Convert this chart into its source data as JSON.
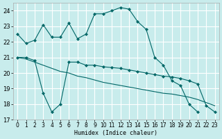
{
  "xlabel": "Humidex (Indice chaleur)",
  "background_color": "#c8ecec",
  "grid_color": "#ffffff",
  "line_color": "#006666",
  "xlim": [
    -0.5,
    23.5
  ],
  "ylim": [
    17,
    24.5
  ],
  "yticks": [
    17,
    18,
    19,
    20,
    21,
    22,
    23,
    24
  ],
  "xticks": [
    0,
    1,
    2,
    3,
    4,
    5,
    6,
    7,
    8,
    9,
    10,
    11,
    12,
    13,
    14,
    15,
    16,
    17,
    18,
    19,
    20,
    21,
    22,
    23
  ],
  "curve1_x": [
    0,
    1,
    2,
    3,
    4,
    5,
    6,
    7,
    8,
    9,
    10,
    11,
    12,
    13,
    14,
    15,
    16,
    17,
    18,
    19,
    20,
    21
  ],
  "curve1_y": [
    22.5,
    21.9,
    22.1,
    23.1,
    22.3,
    22.3,
    23.2,
    22.2,
    22.5,
    23.8,
    23.8,
    24.0,
    24.2,
    24.1,
    23.3,
    22.8,
    21.0,
    20.5,
    19.5,
    19.2,
    18.0,
    17.5
  ],
  "curve2_x": [
    0,
    1,
    2,
    3,
    4,
    5,
    6,
    7,
    8,
    9,
    10,
    11,
    12,
    13,
    14,
    15,
    16,
    17,
    18,
    19,
    20,
    21,
    22,
    23
  ],
  "curve2_y": [
    21.0,
    21.0,
    20.8,
    18.7,
    17.5,
    18.0,
    20.7,
    20.7,
    20.5,
    20.5,
    20.4,
    20.35,
    20.3,
    20.2,
    20.1,
    20.0,
    19.9,
    19.8,
    19.75,
    19.65,
    19.5,
    19.3,
    17.9,
    17.5
  ],
  "curve3_x": [
    0,
    1,
    2,
    3,
    4,
    5,
    6,
    7,
    8,
    9,
    10,
    11,
    12,
    13,
    14,
    15,
    16,
    17,
    18,
    19,
    20,
    21,
    22,
    23
  ],
  "curve3_y": [
    21.0,
    20.9,
    20.7,
    20.5,
    20.3,
    20.1,
    20.0,
    19.8,
    19.7,
    19.55,
    19.4,
    19.3,
    19.2,
    19.1,
    19.0,
    18.9,
    18.8,
    18.7,
    18.65,
    18.55,
    18.45,
    18.3,
    18.1,
    17.9
  ]
}
